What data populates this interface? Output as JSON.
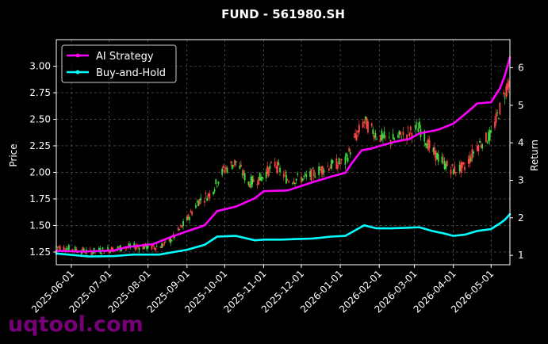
{
  "chart_data": {
    "type": "line",
    "title": "FUND - 561980.SH",
    "xlabel": "",
    "ylabel_left": "Price",
    "ylabel_right": "Return",
    "ylim_left": [
      1.13,
      3.25
    ],
    "ylim_right": [
      0.75,
      6.75
    ],
    "xlim": [
      "2025-05-20",
      "2026-05-16"
    ],
    "grid": true,
    "legend_placement": "top-left",
    "colors": {
      "ai": "#ff00ff",
      "hold": "#00ffff",
      "up": "#3ddc3d",
      "down": "#ff4444",
      "background": "#000000",
      "axes": "#ffffff",
      "grid": "#666666",
      "watermark": "#8b008b"
    },
    "left_ticks": [
      {
        "value": 1.25,
        "label": "1.25"
      },
      {
        "value": 1.5,
        "label": "1.50"
      },
      {
        "value": 1.75,
        "label": "1.75"
      },
      {
        "value": 2.0,
        "label": "2.00"
      },
      {
        "value": 2.25,
        "label": "2.25"
      },
      {
        "value": 2.5,
        "label": "2.50"
      },
      {
        "value": 2.75,
        "label": "2.75"
      },
      {
        "value": 3.0,
        "label": "3.00"
      }
    ],
    "right_ticks": [
      {
        "value": 1,
        "label": "1"
      },
      {
        "value": 2,
        "label": "2"
      },
      {
        "value": 3,
        "label": "3"
      },
      {
        "value": 4,
        "label": "4"
      },
      {
        "value": 5,
        "label": "5"
      },
      {
        "value": 6,
        "label": "6"
      }
    ],
    "x_ticks": [
      "2025-06-01",
      "2025-07-01",
      "2025-08-01",
      "2025-09-01",
      "2025-10-01",
      "2025-11-01",
      "2025-12-01",
      "2026-01-01",
      "2026-02-01",
      "2026-03-01",
      "2026-04-01",
      "2026-05-01"
    ],
    "series": [
      {
        "name": "AI Strategy",
        "axis": "right",
        "x": [
          "2025-05-20",
          "2025-06-10",
          "2025-07-05",
          "2025-07-15",
          "2025-08-05",
          "2025-08-20",
          "2025-09-01",
          "2025-09-15",
          "2025-09-25",
          "2025-10-10",
          "2025-10-25",
          "2025-11-01",
          "2025-11-20",
          "2025-12-10",
          "2025-12-25",
          "2026-01-05",
          "2026-01-10",
          "2026-01-18",
          "2026-01-25",
          "2026-02-05",
          "2026-02-15",
          "2026-02-25",
          "2026-03-05",
          "2026-03-20",
          "2026-04-01",
          "2026-04-15",
          "2026-04-20",
          "2026-05-01",
          "2026-05-08",
          "2026-05-12",
          "2026-05-16"
        ],
        "values": [
          1.12,
          1.1,
          1.13,
          1.22,
          1.3,
          1.5,
          1.64,
          1.8,
          2.18,
          2.3,
          2.52,
          2.71,
          2.73,
          2.95,
          3.1,
          3.2,
          3.45,
          3.8,
          3.84,
          3.95,
          4.04,
          4.1,
          4.25,
          4.35,
          4.51,
          4.9,
          5.05,
          5.08,
          5.45,
          5.8,
          6.28
        ]
      },
      {
        "name": "Buy-and-Hold",
        "axis": "right",
        "x": [
          "2025-05-20",
          "2025-06-15",
          "2025-07-05",
          "2025-07-20",
          "2025-08-10",
          "2025-08-20",
          "2025-09-01",
          "2025-09-15",
          "2025-09-25",
          "2025-10-10",
          "2025-10-25",
          "2025-11-01",
          "2025-11-15",
          "2025-12-10",
          "2025-12-25",
          "2026-01-05",
          "2026-01-12",
          "2026-01-20",
          "2026-01-30",
          "2026-02-10",
          "2026-02-20",
          "2026-03-05",
          "2026-03-15",
          "2026-03-25",
          "2026-04-01",
          "2026-04-10",
          "2026-04-20",
          "2026-05-01",
          "2026-05-08",
          "2026-05-12",
          "2026-05-16"
        ],
        "values": [
          1.05,
          0.97,
          0.98,
          1.02,
          1.02,
          1.08,
          1.15,
          1.28,
          1.5,
          1.52,
          1.4,
          1.42,
          1.42,
          1.45,
          1.5,
          1.52,
          1.65,
          1.8,
          1.72,
          1.72,
          1.73,
          1.75,
          1.65,
          1.58,
          1.52,
          1.55,
          1.65,
          1.7,
          1.85,
          1.95,
          2.1
        ]
      },
      {
        "name": "Price",
        "axis": "left",
        "x": [
          "2025-05-20",
          "2025-06-15",
          "2025-07-05",
          "2025-07-20",
          "2025-08-10",
          "2025-08-20",
          "2025-09-01",
          "2025-09-10",
          "2025-09-20",
          "2025-09-30",
          "2025-10-10",
          "2025-10-20",
          "2025-10-30",
          "2025-11-10",
          "2025-11-20",
          "2025-12-05",
          "2025-12-20",
          "2026-01-05",
          "2026-01-12",
          "2026-01-20",
          "2026-01-30",
          "2026-02-10",
          "2026-02-20",
          "2026-03-05",
          "2026-03-15",
          "2026-03-25",
          "2026-04-01",
          "2026-04-10",
          "2026-04-20",
          "2026-05-01",
          "2026-05-08",
          "2026-05-12",
          "2026-05-16"
        ],
        "values": [
          1.3,
          1.25,
          1.28,
          1.3,
          1.3,
          1.37,
          1.55,
          1.73,
          1.8,
          2.02,
          2.1,
          1.9,
          1.95,
          2.08,
          1.93,
          1.95,
          2.05,
          2.1,
          2.3,
          2.48,
          2.35,
          2.3,
          2.35,
          2.42,
          2.2,
          2.08,
          2.02,
          2.05,
          2.25,
          2.35,
          2.6,
          2.75,
          2.9
        ]
      }
    ]
  },
  "watermark": "uqtool.com"
}
